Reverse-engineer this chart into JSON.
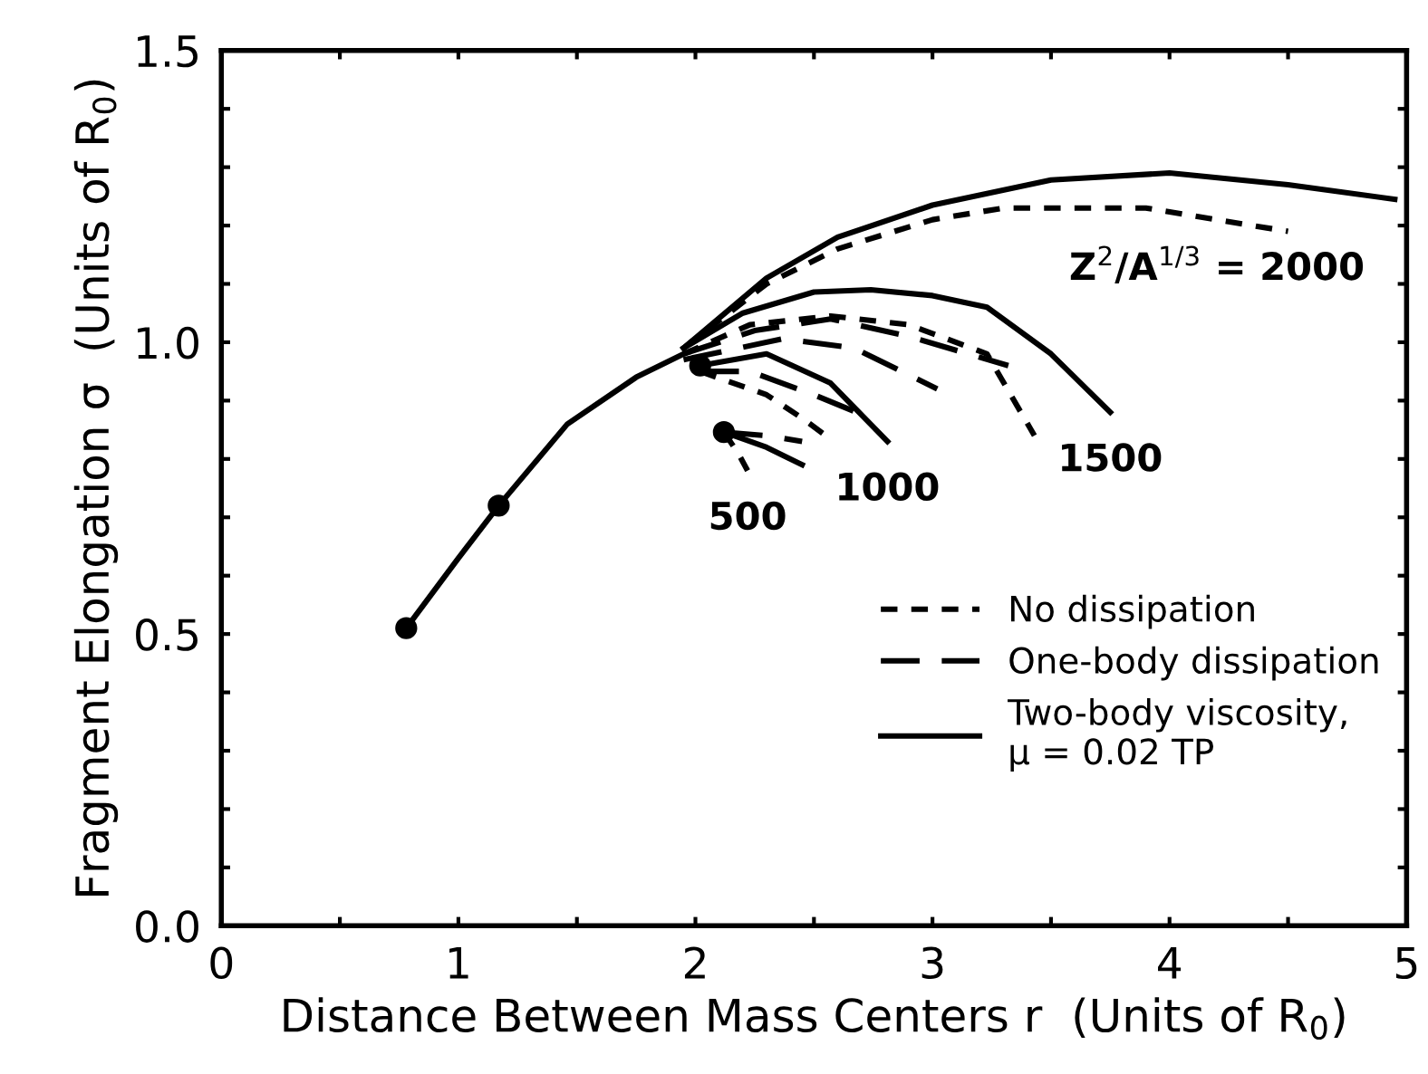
{
  "chart_data": {
    "type": "line",
    "xlabel": "Distance Between Mass Centers r  (Units of R$_{0}$)",
    "ylabel": "Fragment Elongation σ  (Units of R$_{0}$)",
    "xlim": [
      0,
      5
    ],
    "ylim": [
      0,
      1.5
    ],
    "xticks": [
      0,
      {
        "value": 0.5,
        "label": null
      },
      1,
      {
        "value": 1.5,
        "label": null
      },
      2,
      {
        "value": 2.5,
        "label": null
      },
      3,
      {
        "value": 3.5,
        "label": null
      },
      4,
      {
        "value": 4.5,
        "label": null
      },
      5
    ],
    "yticks": [
      {
        "value": 0,
        "label": "0.0"
      },
      {
        "value": 0.1,
        "label": null
      },
      {
        "value": 0.2,
        "label": null
      },
      {
        "value": 0.3,
        "label": null
      },
      {
        "value": 0.4,
        "label": null
      },
      {
        "value": 0.5,
        "label": "0.5"
      },
      {
        "value": 0.6,
        "label": null
      },
      {
        "value": 0.7,
        "label": null
      },
      {
        "value": 0.8,
        "label": null
      },
      {
        "value": 0.9,
        "label": null
      },
      {
        "value": 1.0,
        "label": "1.0"
      },
      {
        "value": 1.1,
        "label": null
      },
      {
        "value": 1.2,
        "label": null
      },
      {
        "value": 1.3,
        "label": null
      },
      {
        "value": 1.4,
        "label": null
      },
      {
        "value": 1.5,
        "label": "1.5"
      }
    ],
    "grid": false,
    "legend": "bottom right",
    "marker": "none",
    "series": [
      {
        "color": "#000000",
        "line_style": "solid",
        "x": [
          0.78,
          1.0,
          1.17,
          1.46,
          1.75,
          1.95
        ],
        "values": [
          0.51,
          0.63,
          0.72,
          0.86,
          0.94,
          0.98
        ]
      },
      {
        "type": "scatter",
        "marker": "circle",
        "color": "#000000",
        "x": [
          0.78,
          1.17,
          2.02,
          2.12
        ],
        "values": [
          0.51,
          0.72,
          0.96,
          0.846
        ]
      },
      {
        "name": "No dissipation",
        "color": "#000000",
        "line_style": "dotted",
        "x": [
          1.95,
          2.3,
          2.6,
          3.0,
          3.3,
          3.9,
          4.2,
          4.5
        ],
        "values": [
          0.99,
          1.1,
          1.16,
          1.21,
          1.23,
          1.23,
          1.21,
          1.19
        ]
      },
      {
        "name": "One-body dissipation",
        "color": "#000000",
        "line_style": "dashed",
        "x": [
          1.95,
          2.25,
          2.57,
          2.9,
          3.32
        ],
        "values": [
          0.98,
          1.02,
          1.04,
          1.01,
          0.96
        ]
      },
      {
        "name": "Two-body viscosity,\nμ = 0.02 TP",
        "color": "#000000",
        "line_style": "solid",
        "x": [
          1.95,
          2.3,
          2.6,
          3.0,
          3.5,
          4.0,
          4.5,
          4.95
        ],
        "values": [
          0.99,
          1.11,
          1.18,
          1.235,
          1.278,
          1.29,
          1.27,
          1.245
        ]
      },
      {
        "color": "#000000",
        "line_style": "solid",
        "x": [
          1.95,
          2.2,
          2.5,
          2.74,
          3.0,
          3.23,
          3.5,
          3.75
        ],
        "values": [
          0.99,
          1.05,
          1.086,
          1.09,
          1.08,
          1.06,
          0.98,
          0.88
        ]
      },
      {
        "color": "#000000",
        "line_style": "dotted",
        "x": [
          1.95,
          2.23,
          2.57,
          2.9,
          3.23,
          3.43
        ],
        "values": [
          0.98,
          1.03,
          1.045,
          1.03,
          0.98,
          0.84
        ]
      },
      {
        "color": "#000000",
        "line_style": "dashed",
        "x": [
          1.95,
          2.37,
          2.67,
          3.02
        ],
        "values": [
          0.97,
          1.006,
          0.99,
          0.92
        ]
      },
      {
        "color": "#000000",
        "line_style": "solid",
        "x": [
          2.02,
          2.3,
          2.57,
          2.81
        ],
        "values": [
          0.96,
          0.98,
          0.93,
          0.83
        ]
      },
      {
        "color": "#000000",
        "line_style": "dashed",
        "x": [
          2.02,
          2.23,
          2.5,
          2.74
        ],
        "values": [
          0.95,
          0.95,
          0.91,
          0.87
        ]
      },
      {
        "color": "#000000",
        "line_style": "dotted",
        "x": [
          2.02,
          2.3,
          2.45,
          2.55
        ],
        "values": [
          0.95,
          0.91,
          0.87,
          0.84
        ]
      },
      {
        "color": "#000000",
        "line_style": "solid",
        "x": [
          2.12,
          2.3,
          2.45
        ],
        "values": [
          0.846,
          0.82,
          0.79
        ]
      },
      {
        "color": "#000000",
        "line_style": "dashed",
        "x": [
          2.12,
          2.3,
          2.45
        ],
        "values": [
          0.846,
          0.84,
          0.83
        ]
      },
      {
        "color": "#000000",
        "line_style": "dotted",
        "x": [
          2.12,
          2.18,
          2.22
        ],
        "values": [
          0.846,
          0.81,
          0.78
        ]
      }
    ],
    "annotations": [
      {
        "text": "500",
        "x": 2.22,
        "y": 0.78
      },
      {
        "text": "1000",
        "x": 2.81,
        "y": 0.83
      },
      {
        "text": "1500",
        "x": 3.75,
        "y": 0.88
      },
      {
        "text": "Z$^{2}$/A$^{1/3}$ = 2000",
        "x": 4.2,
        "y": 1.21
      }
    ]
  }
}
